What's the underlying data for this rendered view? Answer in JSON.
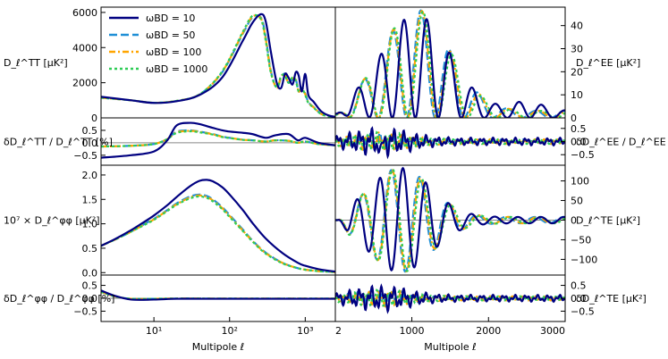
{
  "colors": {
    "wbd_10": "#000080",
    "wbd_50": "#1f8fd6",
    "wbd_100": "#ffa500",
    "wbd_1000": "#2ecc55",
    "zero_line": "#888888"
  },
  "chart_data": {
    "type": "line",
    "title": "",
    "legend": {
      "placement": "top-left of top-left panel",
      "entries": [
        "ωBD = 10",
        "ωBD = 50",
        "ωBD = 100",
        "ωBD = 1000"
      ]
    },
    "series_names": [
      "ωBD = 10",
      "ωBD = 50",
      "ωBD = 100",
      "ωBD = 1000"
    ],
    "x_axes": {
      "left": {
        "label": "Multipole ℓ",
        "scale": "log",
        "xlim": [
          2,
          2500
        ],
        "ticks": [
          {
            "v": 10,
            "label": "10¹"
          },
          {
            "v": 100,
            "label": "10²"
          },
          {
            "v": 1000,
            "label": "10³"
          }
        ]
      },
      "right": {
        "label": "Multipole ℓ",
        "scale": "linear",
        "xlim": [
          2,
          3000
        ],
        "ticks": [
          {
            "v": 2,
            "label": "2"
          },
          {
            "v": 1000,
            "label": "1000"
          },
          {
            "v": 2000,
            "label": "2000"
          },
          {
            "v": 3000,
            "label": "3000"
          }
        ]
      }
    },
    "panels": {
      "tt": {
        "ylabel": "D_ℓ^TT [μK²]",
        "ylim": [
          0,
          6300
        ],
        "yticks": [
          {
            "v": 0,
            "label": "0"
          },
          {
            "v": 2000,
            "label": "2000"
          },
          {
            "v": 4000,
            "label": "4000"
          },
          {
            "v": 6000,
            "label": "6000"
          }
        ],
        "x": [
          2,
          5,
          10,
          20,
          40,
          80,
          150,
          200,
          260,
          300,
          350,
          420,
          480,
          540,
          600,
          680,
          750,
          820,
          900,
          1000,
          1100,
          1300,
          1600,
          2000,
          2500
        ],
        "series": [
          {
            "name": "ωBD = 10",
            "values": [
              1200,
              1000,
              850,
              950,
              1300,
              2300,
              4400,
              5400,
              5900,
              5500,
              3800,
              2000,
              1700,
              2500,
              2300,
              1900,
              2600,
              2400,
              1500,
              2500,
              1300,
              900,
              400,
              150,
              60
            ]
          },
          {
            "name": "ωBD = 50",
            "values": [
              1150,
              1000,
              860,
              970,
              1330,
              2600,
              4800,
              5700,
              5700,
              4600,
              2700,
              1700,
              2300,
              2500,
              2000,
              2200,
              2200,
              1500,
              1700,
              1400,
              900,
              600,
              250,
              100,
              40
            ]
          },
          {
            "name": "ωBD = 100",
            "values": [
              1150,
              1000,
              860,
              970,
              1330,
              2620,
              4850,
              5750,
              5650,
              4500,
              2650,
              1700,
              2350,
              2450,
              2000,
              2250,
              2150,
              1500,
              1700,
              1350,
              880,
              590,
              240,
              100,
              40
            ]
          },
          {
            "name": "ωBD = 1000",
            "values": [
              1150,
              1000,
              860,
              970,
              1335,
              2650,
              4900,
              5800,
              5600,
              4400,
              2600,
              1750,
              2400,
              2400,
              2000,
              2300,
              2100,
              1500,
              1700,
              1300,
              850,
              570,
              230,
              95,
              38
            ]
          }
        ]
      },
      "tt_res": {
        "ylabel": "δD_ℓ^TT / D_ℓ^TT [%]",
        "ylim": [
          -0.9,
          1.0
        ],
        "yticks": [
          {
            "v": -0.5,
            "label": "−0.5"
          },
          {
            "v": 0,
            "label": "0.0"
          },
          {
            "v": 0.5,
            "label": "0.5"
          }
        ],
        "x": [
          2,
          5,
          10,
          15,
          20,
          30,
          40,
          60,
          80,
          100,
          150,
          200,
          300,
          400,
          600,
          800,
          1000,
          1500,
          2500
        ],
        "series": [
          {
            "name": "ωBD = 10",
            "values": [
              -0.6,
              -0.5,
              -0.35,
              0.1,
              0.7,
              0.8,
              0.75,
              0.6,
              0.5,
              0.45,
              0.4,
              0.35,
              0.2,
              0.3,
              0.35,
              0.1,
              0.2,
              0.0,
              -0.1
            ]
          },
          {
            "name": "ωBD = 50",
            "values": [
              -0.15,
              -0.12,
              -0.05,
              0.15,
              0.45,
              0.5,
              0.45,
              0.35,
              0.25,
              0.2,
              0.12,
              0.1,
              0.05,
              0.1,
              0.08,
              0.0,
              0.05,
              -0.05,
              -0.1
            ]
          },
          {
            "name": "ωBD = 100",
            "values": [
              -0.15,
              -0.12,
              -0.05,
              0.15,
              0.42,
              0.48,
              0.44,
              0.34,
              0.24,
              0.2,
              0.12,
              0.1,
              0.05,
              0.1,
              0.08,
              0.0,
              0.05,
              -0.05,
              -0.1
            ]
          },
          {
            "name": "ωBD = 1000",
            "values": [
              -0.15,
              -0.12,
              -0.05,
              0.15,
              0.4,
              0.46,
              0.42,
              0.33,
              0.23,
              0.19,
              0.12,
              0.1,
              0.05,
              0.1,
              0.08,
              0.0,
              0.05,
              -0.05,
              -0.1
            ]
          }
        ]
      },
      "pp": {
        "ylabel": "10⁷ × D_ℓ^φφ [μK²]",
        "ylim": [
          -0.05,
          2.2
        ],
        "yticks": [
          {
            "v": 0,
            "label": "0.0"
          },
          {
            "v": 0.5,
            "label": "0.5"
          },
          {
            "v": 1.0,
            "label": "1.0"
          },
          {
            "v": 1.5,
            "label": "1.5"
          },
          {
            "v": 2.0,
            "label": "2.0"
          }
        ],
        "x": [
          2,
          3,
          5,
          8,
          10,
          15,
          20,
          30,
          40,
          50,
          60,
          80,
          100,
          150,
          200,
          300,
          500,
          800,
          1000,
          1500,
          2000,
          2500
        ],
        "series": [
          {
            "name": "ωBD = 10",
            "values": [
              0.55,
              0.68,
              0.87,
              1.07,
              1.17,
              1.38,
              1.55,
              1.77,
              1.88,
              1.9,
              1.87,
              1.75,
              1.6,
              1.28,
              1.02,
              0.7,
              0.4,
              0.2,
              0.14,
              0.07,
              0.04,
              0.02
            ]
          },
          {
            "name": "ωBD = 50",
            "values": [
              0.55,
              0.67,
              0.84,
              1.02,
              1.1,
              1.28,
              1.42,
              1.56,
              1.6,
              1.57,
              1.5,
              1.34,
              1.18,
              0.88,
              0.66,
              0.41,
              0.2,
              0.09,
              0.06,
              0.03,
              0.02,
              0.01
            ]
          },
          {
            "name": "ωBD = 100",
            "values": [
              0.55,
              0.67,
              0.84,
              1.01,
              1.09,
              1.27,
              1.4,
              1.54,
              1.58,
              1.55,
              1.48,
              1.32,
              1.16,
              0.86,
              0.65,
              0.4,
              0.2,
              0.09,
              0.06,
              0.03,
              0.02,
              0.01
            ]
          },
          {
            "name": "ωBD = 1000",
            "values": [
              0.55,
              0.67,
              0.84,
              1.0,
              1.08,
              1.26,
              1.39,
              1.52,
              1.56,
              1.53,
              1.46,
              1.3,
              1.14,
              0.85,
              0.64,
              0.39,
              0.19,
              0.09,
              0.06,
              0.03,
              0.02,
              0.01
            ]
          }
        ]
      },
      "pp_res": {
        "ylabel": "δD_ℓ^φφ / D_ℓ^φφ [%]",
        "ylim": [
          -0.9,
          0.9
        ],
        "yticks": [
          {
            "v": -0.5,
            "label": "−0.5"
          },
          {
            "v": 0,
            "label": "0.0"
          },
          {
            "v": 0.5,
            "label": "0.5"
          }
        ],
        "x": [
          2,
          3,
          5,
          10,
          20,
          50,
          100,
          200,
          500,
          1000,
          2500
        ],
        "series": [
          {
            "name": "ωBD = 10",
            "values": [
              0.3,
              0.1,
              -0.05,
              -0.05,
              -0.02,
              -0.02,
              -0.02,
              -0.02,
              -0.02,
              -0.02,
              -0.02
            ]
          },
          {
            "name": "ωBD = 50",
            "values": [
              0.25,
              0.08,
              -0.02,
              -0.02,
              -0.01,
              -0.01,
              -0.01,
              -0.01,
              -0.01,
              -0.01,
              -0.01
            ]
          },
          {
            "name": "ωBD = 100",
            "values": [
              0.25,
              0.08,
              -0.02,
              -0.02,
              -0.01,
              -0.01,
              -0.01,
              -0.01,
              -0.01,
              -0.01,
              -0.01
            ]
          },
          {
            "name": "ωBD = 1000",
            "values": [
              0.25,
              0.08,
              -0.02,
              -0.02,
              -0.01,
              -0.01,
              -0.01,
              -0.01,
              -0.01,
              -0.01,
              -0.01
            ]
          }
        ]
      },
      "ee": {
        "ylabel": "D_ℓ^EE [μK²]",
        "ylim": [
          0,
          48
        ],
        "yticks": [
          {
            "v": 0,
            "label": "0"
          },
          {
            "v": 10,
            "label": "10"
          },
          {
            "v": 20,
            "label": "20"
          },
          {
            "v": 30,
            "label": "30"
          },
          {
            "v": 40,
            "label": "40"
          }
        ],
        "model": "oscillation",
        "base_fundamental": 300,
        "base_phase": 0.1,
        "scale": [
          1.0,
          0.8,
          0.79,
          0.78
        ],
        "amp_peak": 42,
        "amp_center": 1050,
        "amp_width": 620,
        "amp_floor": 3
      },
      "ee_res": {
        "ylabel": "δD_ℓ^EE / D_ℓ^EE [%]",
        "ylim": [
          -0.9,
          0.9
        ],
        "yticks": [
          {
            "v": -0.5,
            "label": "−0.5"
          },
          {
            "v": 0,
            "label": "0.0"
          },
          {
            "v": 0.5,
            "label": "0.5"
          }
        ],
        "model": "residual",
        "noise_amp": 0.22
      },
      "te": {
        "ylabel": "D_ℓ^TE [μK²]",
        "ylim": [
          -140,
          140
        ],
        "yticks": [
          {
            "v": -100,
            "label": "−100"
          },
          {
            "v": -50,
            "label": "−50"
          },
          {
            "v": 0,
            "label": "0"
          },
          {
            "v": 50,
            "label": "50"
          },
          {
            "v": 100,
            "label": "100"
          }
        ],
        "model": "oscillation_signed",
        "base_fundamental": 300,
        "base_phase": 0.35,
        "scale": [
          1.0,
          0.8,
          0.79,
          0.78
        ],
        "amp_peak": 125,
        "amp_center": 850,
        "amp_width": 560
      },
      "te_res": {
        "ylabel": "δD_ℓ^TE [μK²]",
        "ylim": [
          -0.9,
          0.9
        ],
        "yticks": [
          {
            "v": -0.5,
            "label": "−0.5"
          },
          {
            "v": 0,
            "label": "0.0"
          },
          {
            "v": 0.5,
            "label": "0.5"
          }
        ],
        "model": "residual",
        "noise_amp": 0.2
      }
    }
  }
}
